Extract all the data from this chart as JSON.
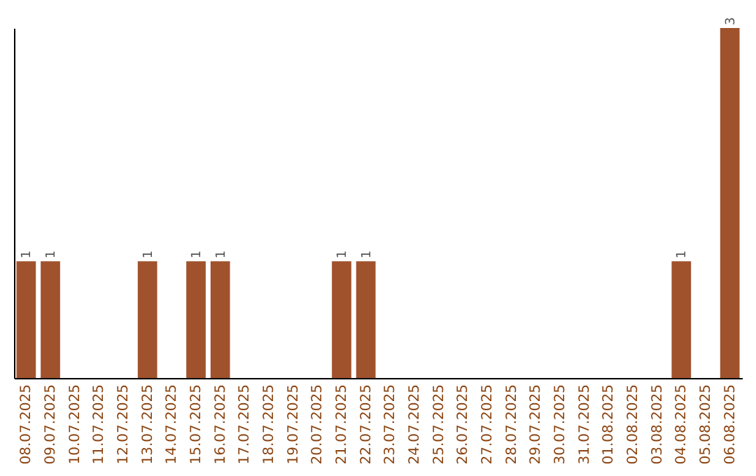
{
  "chart_data": {
    "type": "bar",
    "categories": [
      "08.07.2025",
      "09.07.2025",
      "10.07.2025",
      "11.07.2025",
      "12.07.2025",
      "13.07.2025",
      "14.07.2025",
      "15.07.2025",
      "16.07.2025",
      "17.07.2025",
      "18.07.2025",
      "19.07.2025",
      "20.07.2025",
      "21.07.2025",
      "22.07.2025",
      "23.07.2025",
      "24.07.2025",
      "25.07.2025",
      "26.07.2025",
      "27.07.2025",
      "28.07.2025",
      "29.07.2025",
      "30.07.2025",
      "31.07.2025",
      "01.08.2025",
      "02.08.2025",
      "03.08.2025",
      "04.08.2025",
      "05.08.2025",
      "06.08.2025"
    ],
    "values": [
      1,
      1,
      0,
      0,
      0,
      1,
      0,
      1,
      1,
      0,
      0,
      0,
      0,
      1,
      1,
      0,
      0,
      0,
      0,
      0,
      0,
      0,
      0,
      0,
      0,
      0,
      0,
      1,
      0,
      3
    ],
    "value_labels": [
      "1",
      "1",
      null,
      null,
      null,
      "1",
      null,
      "1",
      "1",
      null,
      null,
      null,
      null,
      "1",
      "1",
      null,
      null,
      null,
      null,
      null,
      null,
      null,
      null,
      null,
      null,
      null,
      null,
      "1",
      null,
      "3"
    ],
    "color": "#a0522d"
  }
}
